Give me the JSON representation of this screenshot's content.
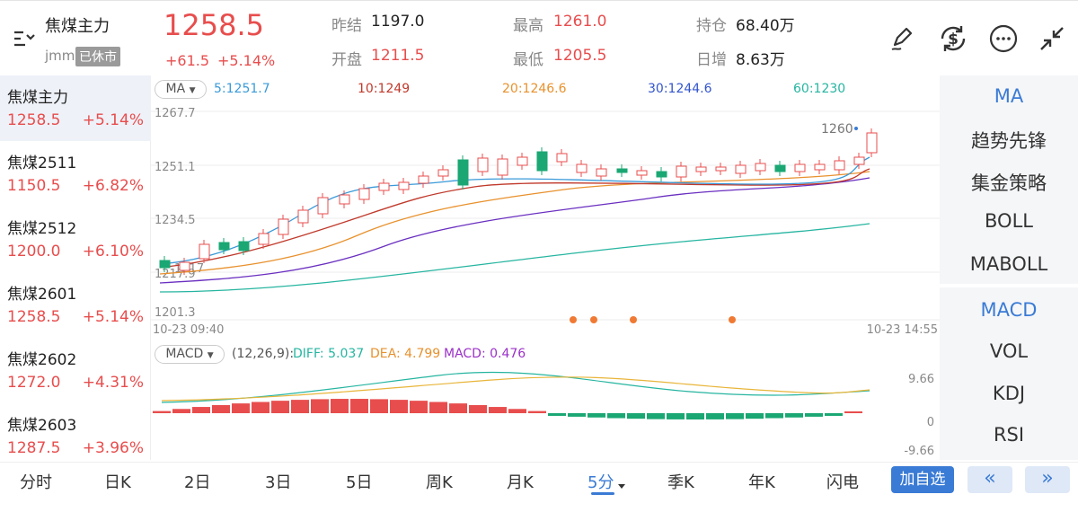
{
  "header": {
    "name": "焦煤主力",
    "code": "jmm",
    "status": "已休市",
    "price": "1258.5",
    "change": "+61.5",
    "change_pct": "+5.14%",
    "stats": {
      "prev_close_label": "昨结",
      "prev_close": "1197.0",
      "open_label": "开盘",
      "open": "1211.5",
      "high_label": "最高",
      "high": "1261.0",
      "low_label": "最低",
      "low": "1205.5",
      "oi_label": "持仓",
      "oi": "68.40万",
      "oi_change_label": "日增",
      "oi_change": "8.63万"
    },
    "icons": [
      "menu-sort-icon",
      "pen-icon",
      "currency-exchange-icon",
      "more-icon",
      "collapse-icon"
    ]
  },
  "sidebar": {
    "items": [
      {
        "name": "焦煤主力",
        "price": "1258.5",
        "change": "+5.14%"
      },
      {
        "name": "焦煤2511",
        "price": "1150.5",
        "change": "+6.82%"
      },
      {
        "name": "焦煤2512",
        "price": "1200.0",
        "change": "+6.10%"
      },
      {
        "name": "焦煤2601",
        "price": "1258.5",
        "change": "+5.14%"
      },
      {
        "name": "焦煤2602",
        "price": "1272.0",
        "change": "+4.31%"
      },
      {
        "name": "焦煤2603",
        "price": "1287.5",
        "change": "+3.96%"
      }
    ]
  },
  "main_chart": {
    "indicator": "MA",
    "ma_values": [
      {
        "label": "5:1251.7",
        "color": "#3a9ad9"
      },
      {
        "label": "10:1249",
        "color": "#c0392b"
      },
      {
        "label": "20:1246.6",
        "color": "#e8912d"
      },
      {
        "label": "30:1244.6",
        "color": "#3355cc"
      },
      {
        "label": "60:1230",
        "color": "#26b5a0"
      }
    ],
    "y_ticks": [
      "1267.7",
      "1251.1",
      "1234.5",
      "1217.9",
      "1201.3"
    ],
    "last_price_label": "1260",
    "low_marker_label": "1217",
    "time_start": "10-23 09:40",
    "time_end": "10-23 14:55"
  },
  "macd_chart": {
    "indicator": "MACD",
    "params": "(12,26,9):",
    "diff": "DIFF: 5.037",
    "dea": "DEA: 4.799",
    "macd": "MACD: 0.476",
    "y_ticks": [
      "9.66",
      "0",
      "-9.66"
    ]
  },
  "right_panel": {
    "main_indicators": [
      "MA",
      "趋势先锋",
      "集金策略",
      "BOLL",
      "MABOLL"
    ],
    "sub_indicators": [
      "MACD",
      "VOL",
      "KDJ",
      "RSI"
    ],
    "active_main": "MA",
    "active_sub": "MACD"
  },
  "tabs": {
    "items": [
      "分时",
      "日K",
      "2日",
      "3日",
      "5日",
      "周K",
      "月K",
      "5分",
      "季K",
      "年K",
      "闪电"
    ],
    "active": "5分",
    "add_watch": "加自选",
    "prev": "«",
    "next": "»"
  },
  "colors": {
    "up": "#e84d4d",
    "down": "#1aa773",
    "accent": "#3a7bd5"
  }
}
